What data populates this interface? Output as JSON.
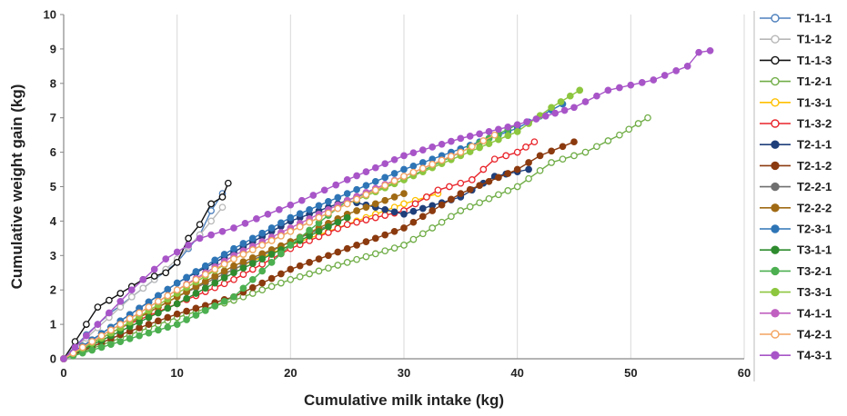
{
  "chart_data": {
    "type": "line",
    "xlabel": "Cumulative milk intake (kg)",
    "ylabel": "Cumulative weight gain (kg)",
    "xlim": [
      0,
      60
    ],
    "ylim": [
      0,
      10
    ],
    "xticks": [
      "0",
      "10",
      "20",
      "30",
      "40",
      "50",
      "60"
    ],
    "yticks": [
      "0",
      "1",
      "2",
      "3",
      "4",
      "5",
      "6",
      "7",
      "8",
      "9",
      "10"
    ],
    "grid": "vertical",
    "legend": "right",
    "series": [
      {
        "name": "T1-1-1",
        "color": "#4f81bd",
        "filled": false,
        "x": [
          0,
          2,
          4,
          6,
          8,
          10,
          12,
          13,
          14
        ],
        "y": [
          0,
          0.7,
          1.3,
          1.8,
          2.3,
          2.8,
          3.6,
          4.3,
          4.8
        ]
      },
      {
        "name": "T1-1-2",
        "color": "#b8b8b8",
        "filled": false,
        "x": [
          0,
          2,
          4,
          6,
          8,
          10,
          12,
          14
        ],
        "y": [
          0,
          0.6,
          1.2,
          1.8,
          2.3,
          2.9,
          3.6,
          4.4
        ]
      },
      {
        "name": "T1-1-3",
        "color": "#111111",
        "filled": false,
        "x": [
          0,
          1,
          3,
          5,
          7,
          9,
          10,
          11,
          12,
          13,
          14,
          14.5
        ],
        "y": [
          0,
          0.5,
          1.5,
          1.9,
          2.3,
          2.5,
          2.8,
          3.5,
          3.9,
          4.5,
          4.7,
          5.1
        ]
      },
      {
        "name": "T1-2-1",
        "color": "#70ad47",
        "filled": false,
        "x": [
          0,
          5,
          10,
          15,
          20,
          25,
          30,
          35,
          40,
          43,
          46,
          49,
          51.5
        ],
        "y": [
          0,
          0.6,
          1.2,
          1.7,
          2.3,
          2.8,
          3.3,
          4.3,
          5.0,
          5.7,
          6.0,
          6.5,
          7.0
        ]
      },
      {
        "name": "T1-3-1",
        "color": "#ffc000",
        "filled": false,
        "x": [
          0,
          5,
          10,
          15,
          20,
          25,
          30,
          33
        ],
        "y": [
          0,
          0.9,
          1.8,
          2.6,
          3.3,
          3.9,
          4.5,
          4.8
        ]
      },
      {
        "name": "T1-3-2",
        "color": "#e8242a",
        "filled": false,
        "x": [
          0,
          5,
          10,
          15,
          20,
          25,
          30,
          33,
          36,
          38,
          40,
          41.5
        ],
        "y": [
          0,
          0.9,
          1.6,
          2.3,
          3.2,
          3.9,
          4.3,
          4.9,
          5.2,
          5.8,
          6.0,
          6.3
        ]
      },
      {
        "name": "T2-1-1",
        "color": "#1f3f7a",
        "filled": true,
        "x": [
          0,
          5,
          10,
          15,
          20,
          25,
          30,
          35,
          38,
          41
        ],
        "y": [
          0,
          1.1,
          2.2,
          3.1,
          4.0,
          4.6,
          4.2,
          4.7,
          5.3,
          5.5
        ]
      },
      {
        "name": "T2-1-2",
        "color": "#8b3a0f",
        "filled": true,
        "x": [
          0,
          5,
          10,
          15,
          20,
          25,
          30,
          35,
          40,
          42,
          45
        ],
        "y": [
          0,
          0.7,
          1.3,
          1.8,
          2.6,
          3.2,
          3.8,
          4.8,
          5.5,
          5.9,
          6.3
        ]
      },
      {
        "name": "T2-2-1",
        "color": "#6f6f6f",
        "filled": true,
        "x": [
          0,
          5,
          10,
          15,
          20,
          25
        ],
        "y": [
          0,
          0.9,
          1.8,
          2.6,
          3.4,
          4.1
        ]
      },
      {
        "name": "T2-2-2",
        "color": "#a06a14",
        "filled": true,
        "x": [
          0,
          5,
          10,
          15,
          20,
          25,
          30
        ],
        "y": [
          0,
          0.9,
          1.8,
          2.7,
          3.4,
          4.2,
          4.8
        ]
      },
      {
        "name": "T2-3-1",
        "color": "#2e75b6",
        "filled": true,
        "x": [
          0,
          5,
          10,
          15,
          20,
          25,
          30,
          35,
          40,
          44
        ],
        "y": [
          0,
          1.1,
          2.2,
          3.2,
          4.1,
          4.8,
          5.5,
          6.1,
          6.7,
          7.4
        ]
      },
      {
        "name": "T3-1-1",
        "color": "#2e8b2e",
        "filled": true,
        "x": [
          0,
          5,
          10,
          15,
          20,
          25
        ],
        "y": [
          0,
          0.8,
          1.6,
          2.5,
          3.3,
          4.1
        ]
      },
      {
        "name": "T3-2-1",
        "color": "#4caf50",
        "filled": true,
        "x": [
          0,
          5,
          10,
          15,
          20,
          25,
          30,
          35,
          40
        ],
        "y": [
          0,
          0.5,
          1.0,
          1.8,
          3.3,
          4.6,
          5.2,
          6.0,
          6.8
        ]
      },
      {
        "name": "T3-3-1",
        "color": "#8dc63f",
        "filled": true,
        "x": [
          0,
          5,
          10,
          15,
          20,
          25,
          30,
          35,
          40,
          43,
          45.5
        ],
        "y": [
          0,
          0.9,
          1.9,
          2.9,
          3.7,
          4.5,
          5.2,
          5.9,
          6.6,
          7.3,
          7.8
        ]
      },
      {
        "name": "T4-1-1",
        "color": "#c060c0",
        "filled": true,
        "x": [
          0,
          5,
          10,
          15,
          20,
          25,
          30,
          35
        ],
        "y": [
          0,
          1.0,
          2.0,
          3.0,
          3.8,
          4.6,
          5.3,
          6.0
        ]
      },
      {
        "name": "T4-2-1",
        "color": "#f4a460",
        "filled": false,
        "x": [
          0,
          5,
          10,
          15,
          20,
          25,
          30,
          35,
          38
        ],
        "y": [
          0,
          1.0,
          2.0,
          2.9,
          3.7,
          4.5,
          5.3,
          6.0,
          6.5
        ]
      },
      {
        "name": "T4-3-1",
        "color": "#a855c8",
        "filled": true,
        "x": [
          0,
          3,
          6,
          9,
          12,
          15,
          18,
          21,
          25,
          30,
          35,
          40,
          45,
          48,
          52,
          55,
          56,
          57
        ],
        "y": [
          0,
          1.0,
          2.0,
          2.9,
          3.5,
          3.8,
          4.2,
          4.6,
          5.2,
          5.9,
          6.4,
          6.8,
          7.3,
          7.8,
          8.1,
          8.5,
          8.9,
          8.95
        ]
      }
    ]
  }
}
